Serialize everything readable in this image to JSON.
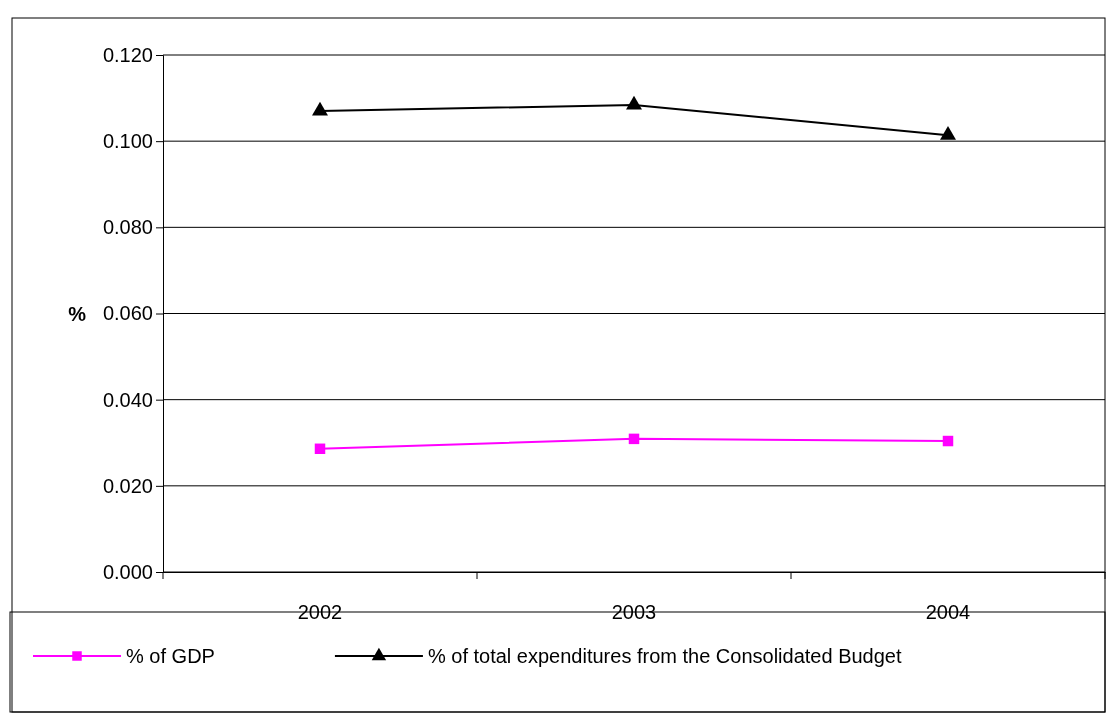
{
  "chart_data": {
    "type": "line",
    "ylabel": "%",
    "categories": [
      "2002",
      "2003",
      "2004"
    ],
    "series": [
      {
        "name": "% of GDP",
        "color": "#ff00ff",
        "marker": "square",
        "values": [
          0.0286,
          0.0309,
          0.0304
        ]
      },
      {
        "name": "% of total expenditures from the Consolidated Budget",
        "color": "#000000",
        "marker": "triangle",
        "values": [
          0.107,
          0.1084,
          0.1014
        ]
      }
    ],
    "ylim": [
      0,
      0.12
    ],
    "yticks": [
      {
        "value": 0,
        "label": "0.000"
      },
      {
        "value": 0.02,
        "label": "0.020"
      },
      {
        "value": 0.04,
        "label": "0.040"
      },
      {
        "value": 0.06,
        "label": "0.060"
      },
      {
        "value": 0.08,
        "label": "0.080"
      },
      {
        "value": 0.1,
        "label": "0.100"
      },
      {
        "value": 0.12,
        "label": "0.120"
      }
    ],
    "grid": "y",
    "legend": "bottom"
  }
}
